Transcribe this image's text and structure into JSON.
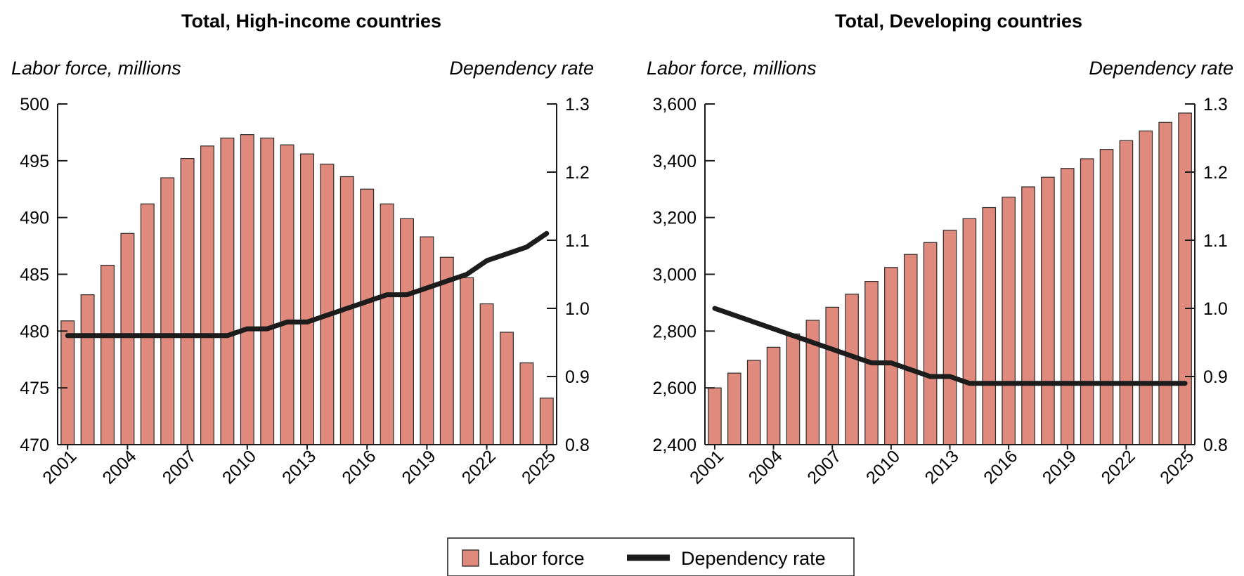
{
  "chart_data": [
    {
      "type": "bar",
      "title": "Total, High-income countries",
      "ylabel": "Labor force, millions",
      "y2label": "Dependency rate",
      "ylim": [
        470,
        500
      ],
      "yticks": [
        470,
        475,
        480,
        485,
        490,
        495,
        500
      ],
      "y2lim": [
        0.8,
        1.3
      ],
      "y2ticks": [
        "0.8",
        "0.9",
        "1.0",
        "1.1",
        "1.2",
        "1.3"
      ],
      "x": [
        2001,
        2002,
        2003,
        2004,
        2005,
        2006,
        2007,
        2008,
        2009,
        2010,
        2011,
        2012,
        2013,
        2014,
        2015,
        2016,
        2017,
        2018,
        2019,
        2020,
        2021,
        2022,
        2023,
        2024,
        2025
      ],
      "xticks": [
        2001,
        2004,
        2007,
        2010,
        2013,
        2016,
        2019,
        2022,
        2025
      ],
      "series": [
        {
          "name": "Labor force",
          "kind": "bar",
          "color": "#df8a7c",
          "values": [
            480.9,
            483.2,
            485.8,
            488.6,
            491.2,
            493.5,
            495.2,
            496.3,
            497.0,
            497.3,
            497.0,
            496.4,
            495.6,
            494.7,
            493.6,
            492.5,
            491.2,
            489.9,
            488.3,
            486.5,
            484.7,
            482.4,
            479.9,
            477.2,
            474.1
          ]
        },
        {
          "name": "Dependency rate",
          "kind": "line",
          "axis": "right",
          "color": "#1c1c1c",
          "values": [
            0.96,
            0.96,
            0.96,
            0.96,
            0.96,
            0.96,
            0.96,
            0.96,
            0.96,
            0.97,
            0.97,
            0.98,
            0.98,
            0.99,
            1.0,
            1.01,
            1.02,
            1.02,
            1.03,
            1.04,
            1.05,
            1.07,
            1.08,
            1.09,
            1.11
          ]
        }
      ]
    },
    {
      "type": "bar",
      "title": "Total, Developing countries",
      "ylabel": "Labor force, millions",
      "y2label": "Dependency rate",
      "ylim": [
        2400,
        3600
      ],
      "yticks": [
        "2,400",
        "2,600",
        "2,800",
        "3,000",
        "3,200",
        "3,400",
        "3,600"
      ],
      "y2lim": [
        0.8,
        1.3
      ],
      "y2ticks": [
        "0.8",
        "0.9",
        "1.0",
        "1.1",
        "1.2",
        "1.3"
      ],
      "x": [
        2001,
        2002,
        2003,
        2004,
        2005,
        2006,
        2007,
        2008,
        2009,
        2010,
        2011,
        2012,
        2013,
        2014,
        2015,
        2016,
        2017,
        2018,
        2019,
        2020,
        2021,
        2022,
        2023,
        2024,
        2025
      ],
      "xticks": [
        2001,
        2004,
        2007,
        2010,
        2013,
        2016,
        2019,
        2022,
        2025
      ],
      "series": [
        {
          "name": "Labor force",
          "kind": "bar",
          "color": "#df8a7c",
          "values": [
            2600,
            2652,
            2697,
            2743,
            2790,
            2838,
            2884,
            2930,
            2975,
            3024,
            3070,
            3112,
            3155,
            3196,
            3235,
            3272,
            3308,
            3342,
            3373,
            3407,
            3440,
            3471,
            3505,
            3535,
            3568
          ]
        },
        {
          "name": "Dependency rate",
          "kind": "line",
          "axis": "right",
          "color": "#1c1c1c",
          "values": [
            1.0,
            0.99,
            0.98,
            0.97,
            0.96,
            0.95,
            0.94,
            0.93,
            0.92,
            0.92,
            0.91,
            0.9,
            0.9,
            0.89,
            0.89,
            0.89,
            0.89,
            0.89,
            0.89,
            0.89,
            0.89,
            0.89,
            0.89,
            0.89,
            0.89
          ]
        }
      ]
    }
  ],
  "legend": {
    "placement": "bottom-center",
    "items": [
      {
        "label": "Labor force",
        "swatch": "bar",
        "color": "#df8a7c"
      },
      {
        "label": "Dependency rate",
        "swatch": "line",
        "color": "#1c1c1c"
      }
    ]
  }
}
